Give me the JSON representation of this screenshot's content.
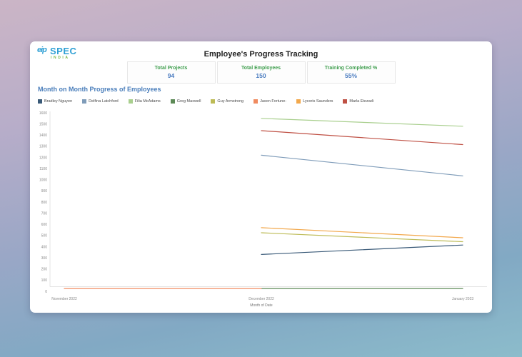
{
  "brand": {
    "name": "SPEC",
    "region": "INDIA",
    "icon_text": "eip"
  },
  "page_title": "Employee's Progress Tracking",
  "stats": [
    {
      "label": "Total Projects",
      "value": "94"
    },
    {
      "label": "Total Employees",
      "value": "150"
    },
    {
      "label": "Training Completed %",
      "value": "55%"
    }
  ],
  "chart_section_title": "Month on Month Progress of Employees",
  "colors": {
    "stat_label_green": "#3f9e4e",
    "stat_value_blue": "#4a7cc0",
    "chart_title_blue": "#4a7ebb",
    "axis_text": "#8a8a8a",
    "axis_line": "#e3e3e3"
  },
  "chart_data": {
    "type": "line",
    "title": "Month on Month Progress of Employees",
    "categories": [
      "November 2022",
      "December 2022",
      "January 2023"
    ],
    "xlabel": "Month of Date",
    "ylabel": "",
    "ylim": [
      0,
      1600
    ],
    "ytick_step": 100,
    "grid": false,
    "legend_position": "top-left",
    "series": [
      {
        "name": "Bradley Nguyen",
        "color": "#3a5a78",
        "values": [
          null,
          330,
          415
        ]
      },
      {
        "name": "Delfina Latchford",
        "color": "#7f9cb9",
        "values": [
          null,
          1220,
          1035
        ]
      },
      {
        "name": "Filia McAdams",
        "color": "#a9cf8e",
        "values": [
          null,
          1550,
          1480
        ]
      },
      {
        "name": "Greg Maxwell",
        "color": "#5d8a57",
        "values": [
          null,
          25,
          25
        ]
      },
      {
        "name": "Guy Armstrong",
        "color": "#bdbb56",
        "values": [
          null,
          525,
          445
        ]
      },
      {
        "name": "Jason Fortune-",
        "color": "#f08b60",
        "values": [
          25,
          25,
          null
        ]
      },
      {
        "name": "Lycoris Saunders",
        "color": "#f2a84c",
        "values": [
          null,
          570,
          480
        ]
      },
      {
        "name": "Marla Etezadi",
        "color": "#bf5044",
        "values": [
          null,
          1440,
          1315
        ]
      }
    ]
  }
}
